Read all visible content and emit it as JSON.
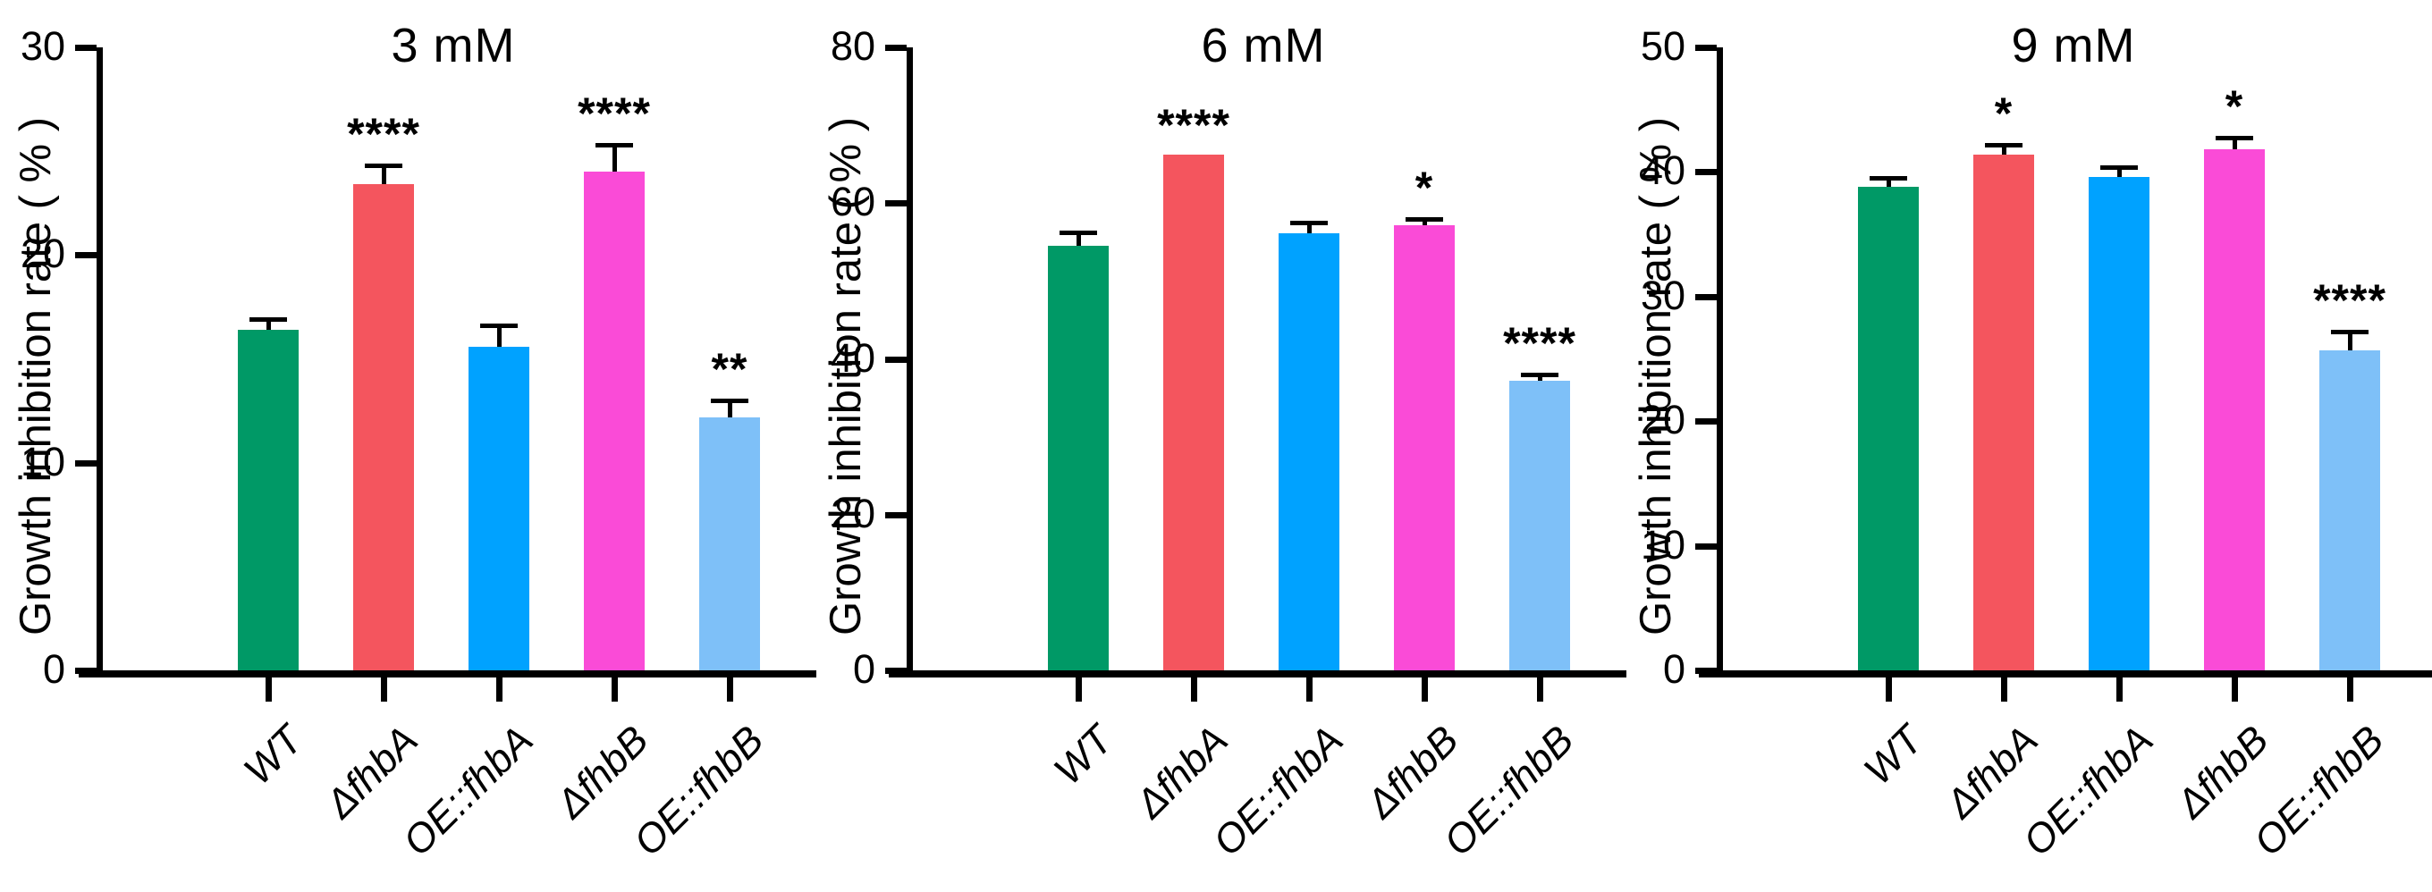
{
  "figure": {
    "ylabel": "Growth inhibition rate ( % )",
    "axis_color": "#000000",
    "error_bar_color": "#000000",
    "significance_color": "#000000",
    "bar_colors": [
      "#009966",
      "#F4555E",
      "#00A2FF",
      "#FA4BD7",
      "#7EC0F8"
    ]
  },
  "chart_data": [
    {
      "type": "bar",
      "title": "3 mM",
      "ylabel": "Growth inhibition rate ( % )",
      "xlabel": "",
      "ylim": [
        0,
        30
      ],
      "yticks": [
        0,
        10,
        20,
        30
      ],
      "grid": false,
      "legend": false,
      "categories": [
        "WT",
        "ΔfhbA",
        "OE::fhbA",
        "ΔfhbB",
        "OE::fhbB"
      ],
      "values": [
        16.4,
        23.4,
        15.6,
        24.0,
        12.2
      ],
      "errors": [
        0.6,
        1.0,
        1.1,
        1.4,
        0.9
      ],
      "significance": [
        "",
        "****",
        "",
        "****",
        "**"
      ]
    },
    {
      "type": "bar",
      "title": "6 mM",
      "ylabel": "Growth inhibition rate ( % )",
      "xlabel": "",
      "ylim": [
        0,
        80
      ],
      "yticks": [
        0,
        20,
        40,
        60,
        80
      ],
      "grid": false,
      "legend": false,
      "categories": [
        "WT",
        "ΔfhbA",
        "OE::fhbA",
        "ΔfhbB",
        "OE::fhbB"
      ],
      "values": [
        54.5,
        66.2,
        56.1,
        57.2,
        37.2
      ],
      "errors": [
        2.0,
        0,
        1.6,
        1.0,
        1.0
      ],
      "significance": [
        "",
        "****",
        "",
        "*",
        "****"
      ]
    },
    {
      "type": "bar",
      "title": "9 mM",
      "ylabel": "Growth inhibition rate ( % )",
      "xlabel": "",
      "ylim": [
        0,
        50
      ],
      "yticks": [
        0,
        10,
        20,
        30,
        40,
        50
      ],
      "grid": false,
      "legend": false,
      "categories": [
        "WT",
        "ΔfhbA",
        "OE::fhbA",
        "ΔfhbB",
        "OE::fhbB"
      ],
      "values": [
        38.8,
        41.4,
        39.6,
        41.8,
        25.7
      ],
      "errors": [
        0.9,
        0.9,
        0.9,
        1.1,
        1.6
      ],
      "significance": [
        "",
        "*",
        "",
        "*",
        "****"
      ]
    }
  ]
}
